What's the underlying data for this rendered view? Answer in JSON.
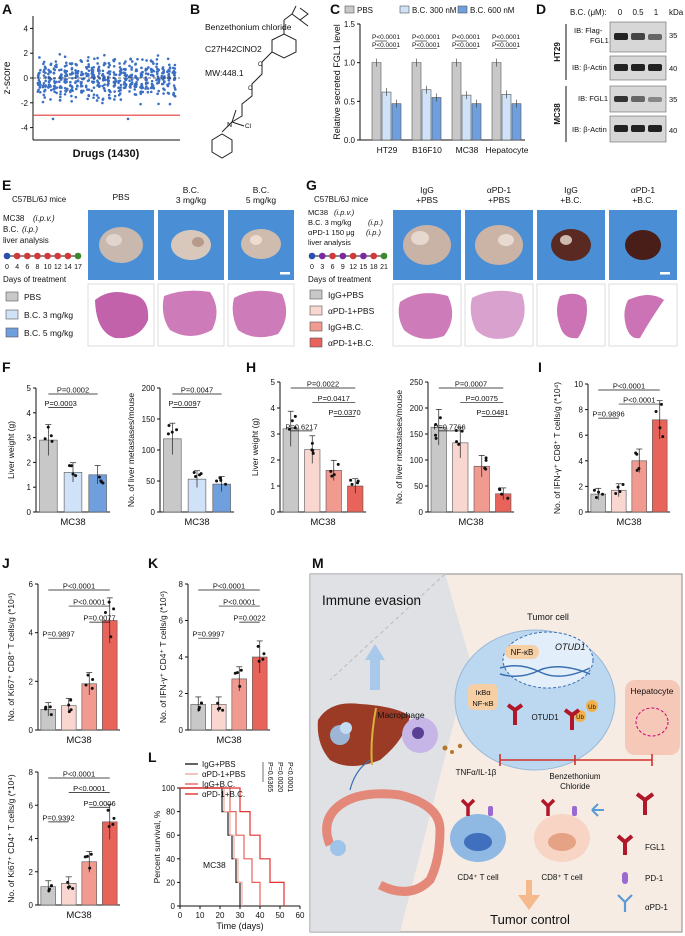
{
  "panels": {
    "A": {
      "letter": "A",
      "ylabel": "z-score",
      "xlabel": "Drugs (1430)",
      "yticks": [
        "4",
        "2",
        "0",
        "-2",
        "-4"
      ],
      "chart_data": {
        "type": "scatter",
        "ylim": [
          -5,
          5
        ],
        "threshold": -3,
        "n_drugs": 1430
      }
    },
    "B": {
      "letter": "B",
      "name": "Benzethonium chloride",
      "formula": "C27H42ClNO2",
      "mw": "MW:448.1",
      "chloride": "Cl"
    },
    "C": {
      "letter": "C",
      "ylabel": "Relative secreted FGL1 level",
      "legend": [
        "PBS",
        "B.C. 300 nM",
        "B.C. 600 nM"
      ],
      "yticks": [
        "0.0",
        "0.5",
        "1.0",
        "1.5"
      ],
      "pvals": [
        "P<0.0001",
        "P<0.0001",
        "P<0.0001"
      ],
      "chart_data": {
        "type": "bar",
        "categories": [
          "HT29",
          "B16F10",
          "MC38",
          "Hepatocyte"
        ],
        "ylim": [
          0,
          1.5
        ],
        "series": [
          {
            "name": "PBS",
            "values": [
              1.0,
              1.0,
              1.0,
              1.0
            ]
          },
          {
            "name": "B.C. 300 nM",
            "values": [
              0.62,
              0.65,
              0.58,
              0.59
            ]
          },
          {
            "name": "B.C. 600 nM",
            "values": [
              0.47,
              0.55,
              0.47,
              0.47
            ]
          }
        ]
      }
    },
    "D": {
      "letter": "D",
      "dose_label": "B.C. (μM):",
      "doses": [
        "0",
        "0.5",
        "1"
      ],
      "kda": "kDa",
      "rows": [
        {
          "label": "IB: Flag-",
          "label2": "FGL1",
          "mw": "35",
          "group": "HT29"
        },
        {
          "label": "IB: β-Actin",
          "mw": "40",
          "group": "HT29"
        },
        {
          "label": "IB: FGL1",
          "mw": "35",
          "group": "MC38"
        },
        {
          "label": "IB: β-Actin",
          "mw": "40",
          "group": "MC38"
        }
      ],
      "groups": [
        "HT29",
        "MC38"
      ]
    },
    "E": {
      "letter": "E",
      "mice": "C57BL/6J mice",
      "steps": [
        "MC38",
        "(i.p.v.)",
        "B.C.",
        "(i.p.)",
        "liver analysis"
      ],
      "days": [
        "0",
        "4",
        "6",
        "8",
        "10",
        "12",
        "14",
        "17"
      ],
      "axis": "Days of treatment",
      "legend": [
        "PBS",
        "B.C. 3 mg/kg",
        "B.C. 5 mg/kg"
      ],
      "photo_titles": [
        "PBS",
        "B.C.",
        "3 mg/kg",
        "B.C.",
        "5 mg/kg"
      ]
    },
    "G": {
      "letter": "G",
      "mice": "C57BL/6J mice",
      "steps": [
        "MC38",
        "(i.p.v.)",
        "B.C. 3 mg/kg",
        "(i.p.)",
        "αPD-1 150 μg",
        "(i.p.)",
        "liver analysis"
      ],
      "days": [
        "0",
        "3",
        "6",
        "9",
        "12",
        "15",
        "18",
        "21"
      ],
      "axis": "Days of treatment",
      "legend": [
        "IgG+PBS",
        "αPD-1+PBS",
        "IgG+B.C.",
        "αPD-1+B.C."
      ],
      "photo_titles": [
        "IgG",
        "+PBS",
        "αPD-1",
        "+PBS",
        "IgG",
        "+B.C.",
        "αPD-1",
        "+B.C."
      ]
    },
    "F": {
      "letter": "F",
      "xlabel": "MC38",
      "left": {
        "ylabel": "Liver weight (g)",
        "yticks": [
          "0",
          "1",
          "2",
          "3",
          "4",
          "5"
        ],
        "pvals": [
          "P=0.0002",
          "P=0.0003"
        ],
        "chart_data": {
          "type": "bar",
          "categories": [
            "PBS",
            "B.C. 3 mg/kg",
            "B.C. 5 mg/kg"
          ],
          "values": [
            2.9,
            1.6,
            1.5
          ],
          "ylim": [
            0,
            5
          ]
        }
      },
      "right": {
        "ylabel": "No. of liver metastases/mouse",
        "yticks": [
          "0",
          "50",
          "100",
          "150",
          "200"
        ],
        "pvals": [
          "P=0.0047",
          "P=0.0097"
        ],
        "chart_data": {
          "type": "bar",
          "categories": [
            "PBS",
            "B.C. 3 mg/kg",
            "B.C. 5 mg/kg"
          ],
          "values": [
            118,
            53,
            45
          ],
          "ylim": [
            0,
            200
          ]
        }
      }
    },
    "H": {
      "letter": "H",
      "xlabel": "MC38",
      "left": {
        "ylabel": "Liver weight (g)",
        "yticks": [
          "0",
          "1",
          "2",
          "3",
          "4",
          "5"
        ],
        "pvals": [
          "P=0.0022",
          "P=0.0417",
          "P=0.0370",
          "P=0.6217"
        ],
        "chart_data": {
          "type": "bar",
          "categories": [
            "IgG+PBS",
            "αPD-1+PBS",
            "IgG+B.C.",
            "αPD-1+B.C."
          ],
          "values": [
            3.2,
            2.4,
            1.6,
            1.0
          ],
          "ylim": [
            0,
            5
          ]
        }
      },
      "right": {
        "ylabel": "No. of liver metastases/mouse",
        "yticks": [
          "0",
          "50",
          "100",
          "150",
          "200",
          "250"
        ],
        "pvals": [
          "P=0.0007",
          "P=0.0075",
          "P=0.0481",
          "P=0.7766"
        ],
        "chart_data": {
          "type": "bar",
          "categories": [
            "IgG+PBS",
            "αPD-1+PBS",
            "IgG+B.C.",
            "αPD-1+B.C."
          ],
          "values": [
            163,
            133,
            88,
            35
          ],
          "ylim": [
            0,
            250
          ]
        }
      }
    },
    "I": {
      "letter": "I",
      "ylabel": "No. of IFN-γ⁺ CD8⁺ T cells/g (*10⁴)",
      "xlabel": "MC38",
      "yticks": [
        "0",
        "2",
        "4",
        "6",
        "8",
        "10"
      ],
      "pvals": [
        "P<0.0001",
        "P<0.0001",
        "P=0.9896"
      ],
      "chart_data": {
        "type": "bar",
        "categories": [
          "IgG+PBS",
          "αPD-1+PBS",
          "IgG+B.C.",
          "αPD-1+B.C."
        ],
        "values": [
          1.4,
          1.7,
          4.0,
          7.2
        ],
        "ylim": [
          0,
          10
        ]
      }
    },
    "J": {
      "letter": "J",
      "xlabel": "MC38",
      "top": {
        "ylabel": "No. of Ki67⁺ CD8⁺ T cells/g (*10⁴)",
        "yticks": [
          "0",
          "2",
          "4",
          "6"
        ],
        "pvals": [
          "P<0.0001",
          "P<0.0001",
          "P=0.0077",
          "P=0.9897"
        ],
        "chart_data": {
          "type": "bar",
          "categories": [
            "IgG+PBS",
            "αPD-1+PBS",
            "IgG+B.C.",
            "αPD-1+B.C."
          ],
          "values": [
            0.85,
            1.0,
            1.9,
            4.5
          ],
          "ylim": [
            0,
            6
          ]
        }
      },
      "bottom": {
        "ylabel": "No. of Ki67⁺ CD4⁺ T cells/g (*10⁴)",
        "yticks": [
          "0",
          "2",
          "4",
          "6",
          "8"
        ],
        "pvals": [
          "P<0.0001",
          "P<0.0001",
          "P=0.0006",
          "P=0.9392"
        ],
        "chart_data": {
          "type": "bar",
          "categories": [
            "IgG+PBS",
            "αPD-1+PBS",
            "IgG+B.C.",
            "αPD-1+B.C."
          ],
          "values": [
            1.1,
            1.3,
            2.6,
            5.0
          ],
          "ylim": [
            0,
            8
          ]
        }
      }
    },
    "K": {
      "letter": "K",
      "ylabel": "No. of IFN-γ⁺ CD4⁺ T cells/g (*10⁴)",
      "xlabel": "MC38",
      "yticks": [
        "0",
        "2",
        "4",
        "6",
        "8"
      ],
      "pvals": [
        "P<0.0001",
        "P<0.0001",
        "P=0.0022",
        "P=0.9997"
      ],
      "chart_data": {
        "type": "bar",
        "categories": [
          "IgG+PBS",
          "αPD-1+PBS",
          "IgG+B.C.",
          "αPD-1+B.C."
        ],
        "values": [
          1.4,
          1.4,
          2.8,
          4.0
        ],
        "ylim": [
          0,
          8
        ]
      }
    },
    "L": {
      "letter": "L",
      "ylabel": "Percent survival, %",
      "xlabel": "Time (days)",
      "label": "MC38",
      "yticks": [
        "0",
        "20",
        "40",
        "60",
        "80",
        "100"
      ],
      "xticks": [
        "0",
        "10",
        "20",
        "30",
        "40",
        "50",
        "60"
      ],
      "legend": [
        "IgG+PBS",
        "αPD-1+PBS",
        "IgG+B.C.",
        "αPD-1+B.C."
      ],
      "pvals": [
        "P=0.6365",
        "P=0.0020",
        "P<0.0001"
      ],
      "chart_data": {
        "type": "line",
        "xlim": [
          0,
          60
        ],
        "ylim": [
          0,
          100
        ],
        "series": [
          {
            "name": "IgG+PBS",
            "x": [
              0,
              21,
              24,
              26,
              28,
              30
            ],
            "y": [
              100,
              80,
              60,
              40,
              20,
              0
            ]
          },
          {
            "name": "αPD-1+PBS",
            "x": [
              0,
              22,
              25,
              27,
              29,
              31
            ],
            "y": [
              100,
              80,
              60,
              40,
              20,
              0
            ]
          },
          {
            "name": "IgG+B.C.",
            "x": [
              0,
              25,
              28,
              32,
              36,
              40
            ],
            "y": [
              100,
              80,
              60,
              40,
              20,
              0
            ]
          },
          {
            "name": "αPD-1+B.C.",
            "x": [
              0,
              30,
              35,
              40,
              45,
              52
            ],
            "y": [
              100,
              80,
              60,
              40,
              20,
              0
            ]
          }
        ]
      }
    },
    "M": {
      "letter": "M",
      "title": "Immune evasion",
      "tumor_cell": "Tumor cell",
      "nfkb": "NF-κB",
      "otud1": "OTUD1",
      "ikba": "IκBα",
      "nfkb2": "NF-κB",
      "macrophage": "Macrophage",
      "tnf": "TNFα/IL-1β",
      "otud1b": "OTUD1",
      "ub": "Ub",
      "hepatocyte": "Hepatocyte",
      "drug1": "Benzethonium",
      "drug2": "Chloride",
      "cd4": "CD4⁺ T cell",
      "cd8": "CD8⁺ T cell",
      "control": "Tumor control",
      "legend": [
        "FGL1",
        "PD-1",
        "αPD-1"
      ]
    }
  },
  "colors": {
    "c0": "#c8c8c8",
    "c1": "#cfe2f7",
    "c2": "#6f9fdd",
    "h0": "#c8c8c8",
    "h1": "#fad6d0",
    "h2": "#f09a90",
    "h3": "#e8635a",
    "red": "#b0182a",
    "blue": "#1f4fa0"
  }
}
